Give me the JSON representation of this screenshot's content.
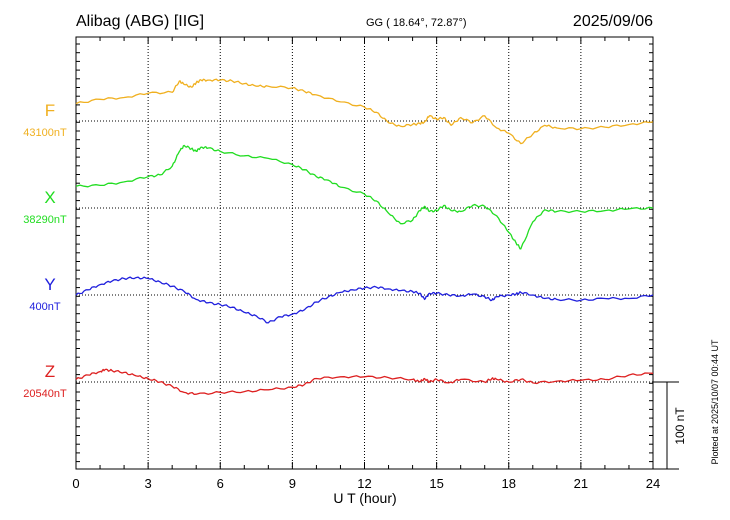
{
  "header": {
    "station": "Alibag (ABG)  [IIG]",
    "coords": "GG ( 18.64°,  72.87°)",
    "date": "2025/09/06"
  },
  "side_note": "Plotted at 2025/10/07 00:44 UT",
  "scale_label": "100 nT",
  "chart_data": {
    "type": "line",
    "xlabel": "U T (hour)",
    "xlim": [
      0,
      24
    ],
    "xticks": [
      0,
      3,
      6,
      9,
      12,
      15,
      18,
      21,
      24
    ],
    "grid": true,
    "scale_bar_nT": 100,
    "series": [
      {
        "name": "F",
        "baseline": "43100nT",
        "color": "#f0b020",
        "x": [
          0,
          1,
          2,
          3,
          4,
          4.3,
          4.5,
          4.8,
          5,
          5.2,
          5.5,
          6,
          6.5,
          7,
          7.5,
          8,
          9,
          9.5,
          10,
          11,
          12,
          12.5,
          13,
          13.5,
          14,
          14.3,
          14.5,
          14.7,
          15,
          15.3,
          15.6,
          16,
          16.5,
          17,
          17.5,
          18,
          18.5,
          19,
          19.5,
          20,
          21,
          22,
          23,
          24
        ],
        "y": [
          20,
          25,
          27,
          32,
          33,
          46,
          42,
          39,
          44,
          47,
          47,
          47,
          46,
          43,
          40,
          40,
          38,
          34,
          30,
          22,
          16,
          10,
          -2,
          -6,
          -4,
          -3,
          -1,
          6,
          2,
          4,
          -5,
          4,
          -2,
          6,
          -8,
          -14,
          -26,
          -15,
          -5,
          -8,
          -9,
          -7,
          -4,
          -1
        ]
      },
      {
        "name": "X",
        "baseline": "38290nT",
        "color": "#22dd22",
        "x": [
          0,
          1,
          2,
          3,
          3.5,
          4,
          4.3,
          4.5,
          4.8,
          5,
          5.2,
          5.5,
          6,
          7,
          8,
          9,
          9.5,
          10,
          10.5,
          11,
          12,
          12.5,
          13,
          13.5,
          14,
          14.3,
          14.5,
          14.7,
          15,
          15.3,
          15.6,
          16,
          16.5,
          17,
          17.5,
          18,
          18.3,
          18.5,
          19,
          19.5,
          20,
          21,
          22,
          23,
          24
        ],
        "y": [
          25,
          26,
          30,
          36,
          38,
          48,
          65,
          72,
          68,
          65,
          70,
          69,
          65,
          60,
          57,
          50,
          44,
          36,
          32,
          24,
          16,
          8,
          -6,
          -18,
          -14,
          -3,
          2,
          -4,
          -3,
          3,
          -3,
          -4,
          3,
          2,
          -9,
          -28,
          -40,
          -47,
          -16,
          -2,
          -4,
          -4,
          -3,
          -1,
          0
        ]
      },
      {
        "name": "Y",
        "baseline": "400nT",
        "color": "#2020dd",
        "x": [
          0,
          0.5,
          1,
          1.5,
          2,
          2.5,
          3,
          3.5,
          4,
          4.5,
          5,
          5.5,
          6,
          6.5,
          7,
          7.5,
          8,
          8.5,
          9,
          9.5,
          10,
          10.5,
          11,
          11.5,
          12,
          12.5,
          13,
          13.5,
          14,
          14.3,
          14.5,
          14.7,
          15,
          15.5,
          16,
          16.5,
          17,
          17.3,
          17.5,
          18,
          18.3,
          18.5,
          19,
          19.5,
          20,
          21,
          22,
          23,
          24
        ],
        "y": [
          0,
          6,
          12,
          16,
          19,
          20,
          19,
          15,
          10,
          4,
          -5,
          -9,
          -11,
          -14,
          -20,
          -24,
          -32,
          -25,
          -22,
          -17,
          -8,
          -2,
          3,
          6,
          8,
          9,
          7,
          5,
          4,
          2,
          -5,
          2,
          2,
          0,
          -1,
          1,
          -2,
          -6,
          -2,
          0,
          1,
          3,
          0,
          -4,
          -5,
          -6,
          -4,
          -4,
          0
        ]
      },
      {
        "name": "Z",
        "baseline": "20540nT",
        "color": "#dd2020",
        "x": [
          0,
          0.5,
          1,
          1.2,
          1.5,
          2,
          2.5,
          3,
          3.5,
          4,
          4.5,
          5,
          6,
          7,
          8,
          9,
          9.5,
          10,
          11,
          12,
          13,
          14,
          14.3,
          14.5,
          14.7,
          15,
          15.5,
          16,
          17,
          17.3,
          17.5,
          18,
          18.5,
          19,
          20,
          21,
          22,
          23,
          24
        ],
        "y": [
          3,
          8,
          12,
          14,
          13,
          11,
          7,
          4,
          0,
          -5,
          -12,
          -14,
          -12,
          -11,
          -9,
          -6,
          -3,
          4,
          6,
          6,
          5,
          3,
          0,
          4,
          0,
          3,
          -1,
          3,
          0,
          4,
          3,
          0,
          3,
          -1,
          1,
          2,
          3,
          8,
          10
        ]
      }
    ]
  }
}
